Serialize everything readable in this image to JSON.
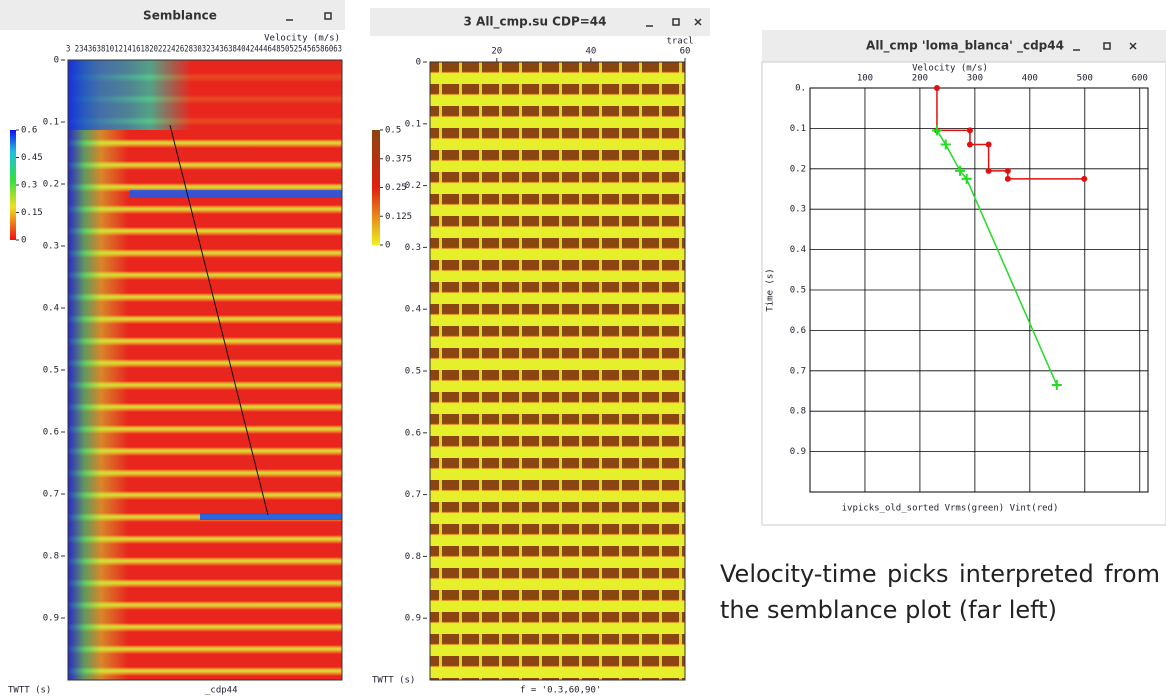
{
  "windows": [
    {
      "title": "Semblance",
      "x_label": "Velocity (m/s)",
      "x_ticks_text": "3 2343638101214161820222426283032343638404244464850525456586063",
      "time_ticks": [
        {
          "value": 0,
          "label": "0"
        },
        0.1,
        0.2,
        0.3,
        0.4,
        0.5,
        0.6,
        0.7,
        0.8,
        0.9
      ],
      "time_lim": [
        0,
        1.0
      ],
      "colorbar_ticks": [
        0.6,
        0.45,
        0.3,
        0.15,
        0
      ],
      "colorbar_lim": [
        0,
        0.6
      ],
      "y_label": "TWTT (s)",
      "footer": "_cdp44"
    },
    {
      "title": "3 All_cmp.su CDP=44",
      "x_label": "tracl",
      "x_ticks": [
        20,
        40,
        60
      ],
      "x_lim": [
        5.8,
        60
      ],
      "time_ticks": [
        {
          "value": 0,
          "label": "0"
        },
        0.1,
        0.2,
        0.3,
        0.4,
        0.5,
        0.6,
        0.7,
        0.8,
        0.9
      ],
      "time_lim": [
        0,
        1.0
      ],
      "colorbar_ticks": [
        0.5,
        0.375,
        0.25,
        0.125,
        0
      ],
      "colorbar_lim": [
        0,
        0.5
      ],
      "y_label": "TWTT (s)",
      "footer": "f = '0.3,60,90'"
    },
    {
      "title": "All_cmp 'loma_blanca' _cdp44"
    }
  ],
  "chart_data": {
    "type": "line",
    "x_label": "Velocity (m/s)",
    "y_label": "Time (s)",
    "note": "ivpicks_old_sorted Vrms(green) Vint(red)",
    "xlim": [
      0,
      615
    ],
    "ylim": [
      0,
      1.0
    ],
    "xticks": [
      100,
      200,
      300,
      400,
      500,
      600
    ],
    "yticks": [
      {
        "value": 0,
        "label": "0."
      },
      0.1,
      0.2,
      0.3,
      0.4,
      0.5,
      0.6,
      0.7,
      0.8,
      0.9
    ],
    "grid": true,
    "series": [
      {
        "color": "#e01010",
        "x": [
          231,
          231,
          291,
          291,
          325,
          325,
          360,
          360,
          499
        ],
        "values": [
          0,
          0.105,
          0.105,
          0.14,
          0.14,
          0.205,
          0.205,
          0.225,
          0.225
        ]
      },
      {
        "color": "#22dd22",
        "x": [
          231,
          247,
          273,
          285,
          449
        ],
        "values": [
          0.105,
          0.14,
          0.205,
          0.225,
          0.735
        ]
      }
    ]
  },
  "caption": "Velocity-time picks interpreted from the semblance plot (far left)"
}
